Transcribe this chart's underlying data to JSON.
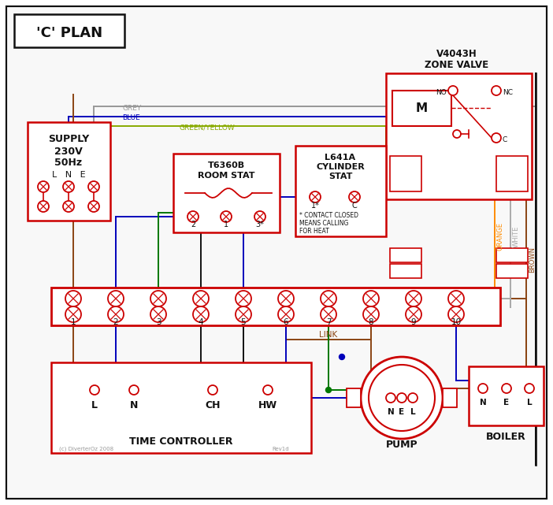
{
  "title": "'C' PLAN",
  "bg_color": "#ffffff",
  "red": "#cc0000",
  "blue": "#0000bb",
  "green": "#007700",
  "grey": "#999999",
  "brown": "#8B4513",
  "orange": "#FF8C00",
  "black": "#111111",
  "green_yellow": "#88aa00",
  "white_wire": "#aaaaaa",
  "figsize": [
    7.02,
    6.41
  ],
  "dpi": 100,
  "xlim": [
    0,
    702
  ],
  "ylim": [
    0,
    641
  ]
}
